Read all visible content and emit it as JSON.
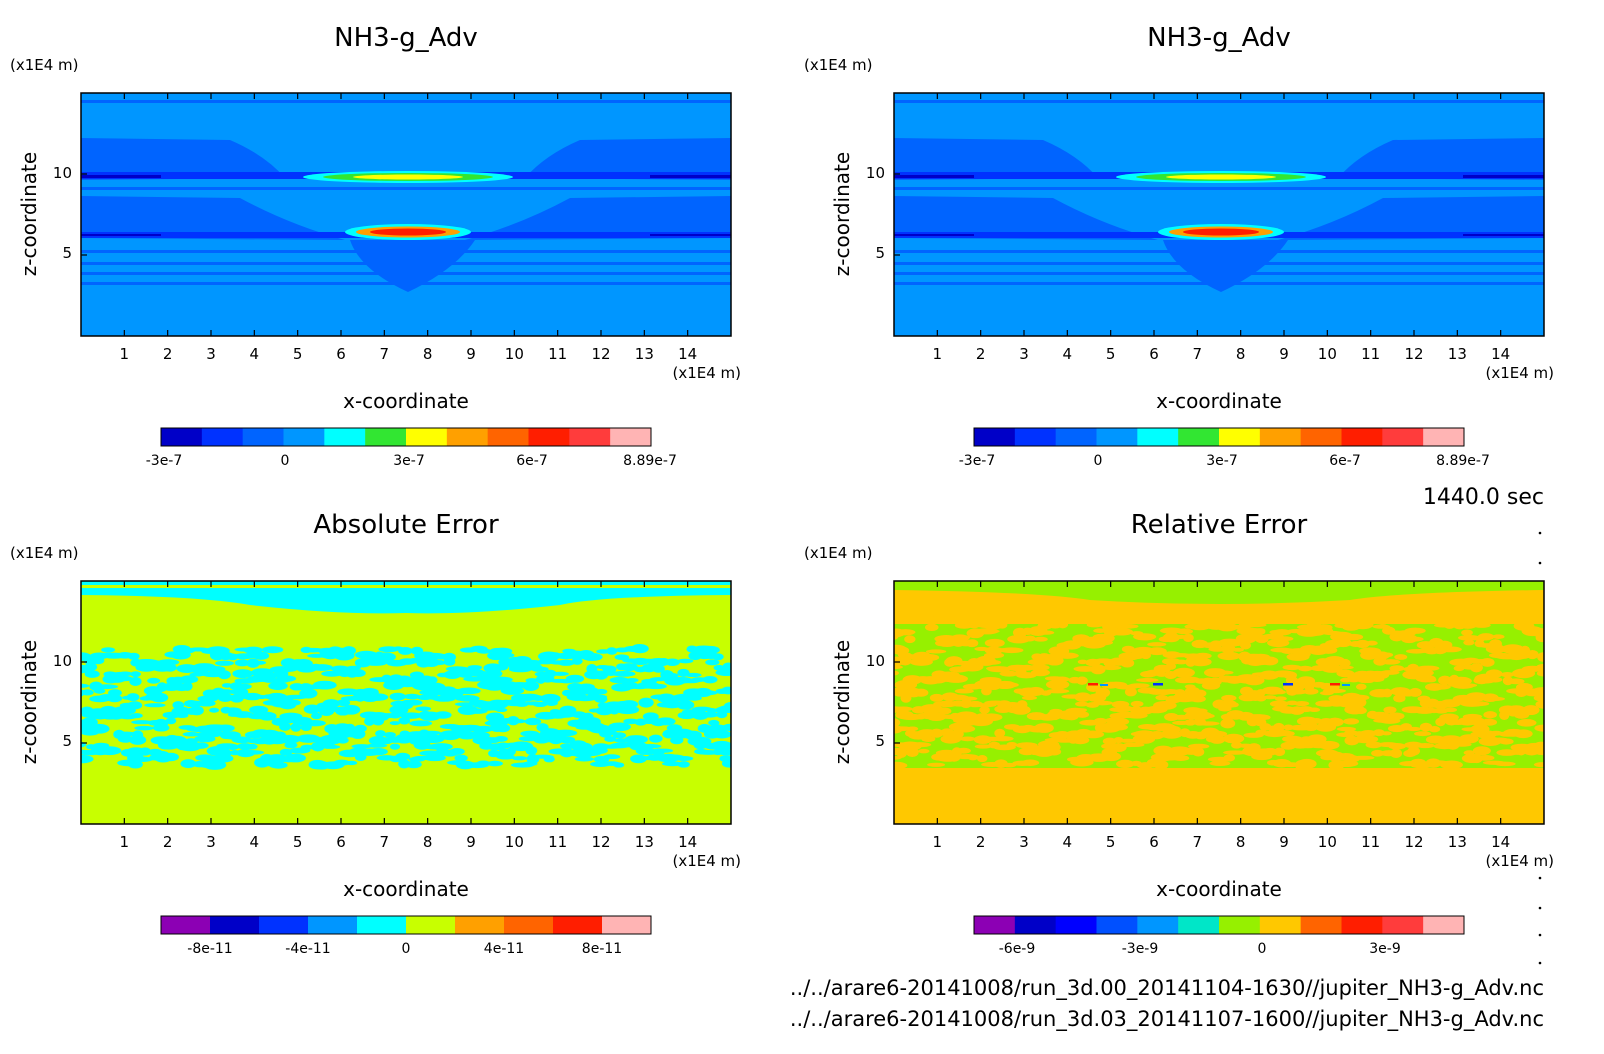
{
  "timestamp": "1440.0 sec",
  "files": [
    "../../arare6-20141008/run_3d.00_20141104-1630//jupiter_NH3-g_Adv.nc",
    "../../arare6-20141008/run_3d.03_20141107-1600//jupiter_NH3-g_Adv.nc"
  ],
  "colors": {
    "nh3": [
      "#0000c8",
      "#0032ff",
      "#0064ff",
      "#0096ff",
      "#00ffff",
      "#32e632",
      "#ffff00",
      "#ffa000",
      "#ff6400",
      "#ff1e00",
      "#ff3c3c",
      "#ffb4b4"
    ],
    "abs": [
      "#8c00b4",
      "#0000c8",
      "#0032ff",
      "#0096ff",
      "#00ffff",
      "#c8ff00",
      "#ffa000",
      "#ff6400",
      "#ff1e00",
      "#ffb4b4"
    ],
    "rel": [
      "#8c00b4",
      "#0000c8",
      "#0000ff",
      "#0050ff",
      "#0096ff",
      "#00e6c8",
      "#96f000",
      "#ffc800",
      "#ff6400",
      "#ff1e00",
      "#ff3c3c",
      "#ffb4b4"
    ]
  },
  "chart_data": [
    {
      "type": "heatmap",
      "title": "NH3-g_Adv",
      "xlabel": "x-coordinate",
      "ylabel": "z-coordinate",
      "x_unit": "(x1E4 m)",
      "y_unit": "(x1E4 m)",
      "xlim": [
        0,
        15
      ],
      "ylim": [
        0,
        15
      ],
      "xticks": [
        "1",
        "2",
        "3",
        "4",
        "5",
        "6",
        "7",
        "8",
        "9",
        "10",
        "11",
        "12",
        "13",
        "14"
      ],
      "yticks": [
        "5",
        "10"
      ],
      "colorbar_ticks": [
        "-3e-7",
        "0",
        "3e-7",
        "6e-7",
        "8.89e-7"
      ],
      "colorbar_range": [
        -3e-07,
        8.89e-07
      ]
    },
    {
      "type": "heatmap",
      "title": "NH3-g_Adv",
      "xlabel": "x-coordinate",
      "ylabel": "z-coordinate",
      "x_unit": "(x1E4 m)",
      "y_unit": "(x1E4 m)",
      "xlim": [
        0,
        15
      ],
      "ylim": [
        0,
        15
      ],
      "xticks": [
        "1",
        "2",
        "3",
        "4",
        "5",
        "6",
        "7",
        "8",
        "9",
        "10",
        "11",
        "12",
        "13",
        "14"
      ],
      "yticks": [
        "5",
        "10"
      ],
      "colorbar_ticks": [
        "-3e-7",
        "0",
        "3e-7",
        "6e-7",
        "8.89e-7"
      ],
      "colorbar_range": [
        -3e-07,
        8.89e-07
      ]
    },
    {
      "type": "heatmap",
      "title": "Absolute Error",
      "xlabel": "x-coordinate",
      "ylabel": "z-coordinate",
      "x_unit": "(x1E4 m)",
      "y_unit": "(x1E4 m)",
      "xlim": [
        0,
        15
      ],
      "ylim": [
        0,
        15
      ],
      "xticks": [
        "1",
        "2",
        "3",
        "4",
        "5",
        "6",
        "7",
        "8",
        "9",
        "10",
        "11",
        "12",
        "13",
        "14"
      ],
      "yticks": [
        "5",
        "10"
      ],
      "colorbar_ticks": [
        "-8e-11",
        "-4e-11",
        "0",
        "4e-11",
        "8e-11"
      ],
      "colorbar_range": [
        -1e-10,
        1e-10
      ]
    },
    {
      "type": "heatmap",
      "title": "Relative Error",
      "xlabel": "x-coordinate",
      "ylabel": "z-coordinate",
      "x_unit": "(x1E4 m)",
      "y_unit": "(x1E4 m)",
      "xlim": [
        0,
        15
      ],
      "ylim": [
        0,
        15
      ],
      "xticks": [
        "1",
        "2",
        "3",
        "4",
        "5",
        "6",
        "7",
        "8",
        "9",
        "10",
        "11",
        "12",
        "13",
        "14"
      ],
      "yticks": [
        "5",
        "10"
      ],
      "colorbar_ticks": [
        "-6e-9",
        "-3e-9",
        "0",
        "3e-9"
      ],
      "colorbar_range": [
        -7e-09,
        5e-09
      ]
    }
  ]
}
